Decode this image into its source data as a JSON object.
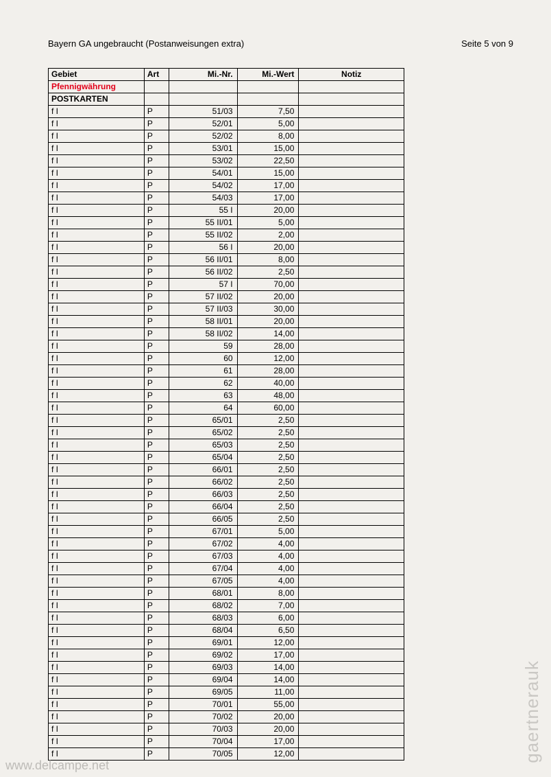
{
  "header": {
    "title": "Bayern GA ungebraucht (Postanweisungen extra)",
    "page_indicator": "Seite 5 von 9"
  },
  "table": {
    "columns": [
      "Gebiet",
      "Art",
      "Mi.-Nr.",
      "Mi.-Wert",
      "Notiz"
    ],
    "section_red": "Pfennigwährung",
    "section_bold": "POSTKARTEN",
    "rows": [
      {
        "gebiet": "f I",
        "art": "P",
        "minr": "51/03",
        "miwert": "7,50",
        "notiz": ""
      },
      {
        "gebiet": "f I",
        "art": "P",
        "minr": "52/01",
        "miwert": "5,00",
        "notiz": ""
      },
      {
        "gebiet": "f I",
        "art": "P",
        "minr": "52/02",
        "miwert": "8,00",
        "notiz": ""
      },
      {
        "gebiet": "f I",
        "art": "P",
        "minr": "53/01",
        "miwert": "15,00",
        "notiz": ""
      },
      {
        "gebiet": "f I",
        "art": "P",
        "minr": "53/02",
        "miwert": "22,50",
        "notiz": ""
      },
      {
        "gebiet": "f I",
        "art": "P",
        "minr": "54/01",
        "miwert": "15,00",
        "notiz": ""
      },
      {
        "gebiet": "f I",
        "art": "P",
        "minr": "54/02",
        "miwert": "17,00",
        "notiz": ""
      },
      {
        "gebiet": "f I",
        "art": "P",
        "minr": "54/03",
        "miwert": "17,00",
        "notiz": ""
      },
      {
        "gebiet": "f I",
        "art": "P",
        "minr": "55 I",
        "miwert": "20,00",
        "notiz": ""
      },
      {
        "gebiet": "f I",
        "art": "P",
        "minr": "55 II/01",
        "miwert": "5,00",
        "notiz": ""
      },
      {
        "gebiet": "f I",
        "art": "P",
        "minr": "55 II/02",
        "miwert": "2,00",
        "notiz": ""
      },
      {
        "gebiet": "f I",
        "art": "P",
        "minr": "56 I",
        "miwert": "20,00",
        "notiz": ""
      },
      {
        "gebiet": "f I",
        "art": "P",
        "minr": "56 II/01",
        "miwert": "8,00",
        "notiz": ""
      },
      {
        "gebiet": "f I",
        "art": "P",
        "minr": "56 II/02",
        "miwert": "2,50",
        "notiz": ""
      },
      {
        "gebiet": "f I",
        "art": "P",
        "minr": "57 I",
        "miwert": "70,00",
        "notiz": ""
      },
      {
        "gebiet": "f I",
        "art": "P",
        "minr": "57 II/02",
        "miwert": "20,00",
        "notiz": ""
      },
      {
        "gebiet": "f I",
        "art": "P",
        "minr": "57 II/03",
        "miwert": "30,00",
        "notiz": ""
      },
      {
        "gebiet": "f I",
        "art": "P",
        "minr": "58 II/01",
        "miwert": "20,00",
        "notiz": ""
      },
      {
        "gebiet": "f I",
        "art": "P",
        "minr": "58 II/02",
        "miwert": "14,00",
        "notiz": ""
      },
      {
        "gebiet": "f I",
        "art": "P",
        "minr": "59",
        "miwert": "28,00",
        "notiz": ""
      },
      {
        "gebiet": "f I",
        "art": "P",
        "minr": "60",
        "miwert": "12,00",
        "notiz": ""
      },
      {
        "gebiet": "f I",
        "art": "P",
        "minr": "61",
        "miwert": "28,00",
        "notiz": ""
      },
      {
        "gebiet": "f I",
        "art": "P",
        "minr": "62",
        "miwert": "40,00",
        "notiz": ""
      },
      {
        "gebiet": "f I",
        "art": "P",
        "minr": "63",
        "miwert": "48,00",
        "notiz": ""
      },
      {
        "gebiet": "f I",
        "art": "P",
        "minr": "64",
        "miwert": "60,00",
        "notiz": ""
      },
      {
        "gebiet": "f I",
        "art": "P",
        "minr": "65/01",
        "miwert": "2,50",
        "notiz": ""
      },
      {
        "gebiet": "f I",
        "art": "P",
        "minr": "65/02",
        "miwert": "2,50",
        "notiz": ""
      },
      {
        "gebiet": "f I",
        "art": "P",
        "minr": "65/03",
        "miwert": "2,50",
        "notiz": ""
      },
      {
        "gebiet": "f I",
        "art": "P",
        "minr": "65/04",
        "miwert": "2,50",
        "notiz": ""
      },
      {
        "gebiet": "f I",
        "art": "P",
        "minr": "66/01",
        "miwert": "2,50",
        "notiz": ""
      },
      {
        "gebiet": "f I",
        "art": "P",
        "minr": "66/02",
        "miwert": "2,50",
        "notiz": ""
      },
      {
        "gebiet": "f I",
        "art": "P",
        "minr": "66/03",
        "miwert": "2,50",
        "notiz": ""
      },
      {
        "gebiet": "f I",
        "art": "P",
        "minr": "66/04",
        "miwert": "2,50",
        "notiz": ""
      },
      {
        "gebiet": "f I",
        "art": "P",
        "minr": "66/05",
        "miwert": "2,50",
        "notiz": ""
      },
      {
        "gebiet": "f I",
        "art": "P",
        "minr": "67/01",
        "miwert": "5,00",
        "notiz": ""
      },
      {
        "gebiet": "f I",
        "art": "P",
        "minr": "67/02",
        "miwert": "4,00",
        "notiz": ""
      },
      {
        "gebiet": "f I",
        "art": "P",
        "minr": "67/03",
        "miwert": "4,00",
        "notiz": ""
      },
      {
        "gebiet": "f I",
        "art": "P",
        "minr": "67/04",
        "miwert": "4,00",
        "notiz": ""
      },
      {
        "gebiet": "f I",
        "art": "P",
        "minr": "67/05",
        "miwert": "4,00",
        "notiz": ""
      },
      {
        "gebiet": "f I",
        "art": "P",
        "minr": "68/01",
        "miwert": "8,00",
        "notiz": ""
      },
      {
        "gebiet": "f I",
        "art": "P",
        "minr": "68/02",
        "miwert": "7,00",
        "notiz": ""
      },
      {
        "gebiet": "f I",
        "art": "P",
        "minr": "68/03",
        "miwert": "6,00",
        "notiz": ""
      },
      {
        "gebiet": "f I",
        "art": "P",
        "minr": "68/04",
        "miwert": "6,50",
        "notiz": ""
      },
      {
        "gebiet": "f I",
        "art": "P",
        "minr": "69/01",
        "miwert": "12,00",
        "notiz": ""
      },
      {
        "gebiet": "f I",
        "art": "P",
        "minr": "69/02",
        "miwert": "17,00",
        "notiz": ""
      },
      {
        "gebiet": "f I",
        "art": "P",
        "minr": "69/03",
        "miwert": "14,00",
        "notiz": ""
      },
      {
        "gebiet": "f I",
        "art": "P",
        "minr": "69/04",
        "miwert": "14,00",
        "notiz": ""
      },
      {
        "gebiet": "f I",
        "art": "P",
        "minr": "69/05",
        "miwert": "11,00",
        "notiz": ""
      },
      {
        "gebiet": "f I",
        "art": "P",
        "minr": "70/01",
        "miwert": "55,00",
        "notiz": ""
      },
      {
        "gebiet": "f I",
        "art": "P",
        "minr": "70/02",
        "miwert": "20,00",
        "notiz": ""
      },
      {
        "gebiet": "f I",
        "art": "P",
        "minr": "70/03",
        "miwert": "20,00",
        "notiz": ""
      },
      {
        "gebiet": "f I",
        "art": "P",
        "minr": "70/04",
        "miwert": "17,00",
        "notiz": ""
      },
      {
        "gebiet": "f I",
        "art": "P",
        "minr": "70/05",
        "miwert": "12,00",
        "notiz": ""
      }
    ]
  },
  "watermarks": {
    "right": "gaertnerauk",
    "bottom": "www.delcampe.net"
  }
}
